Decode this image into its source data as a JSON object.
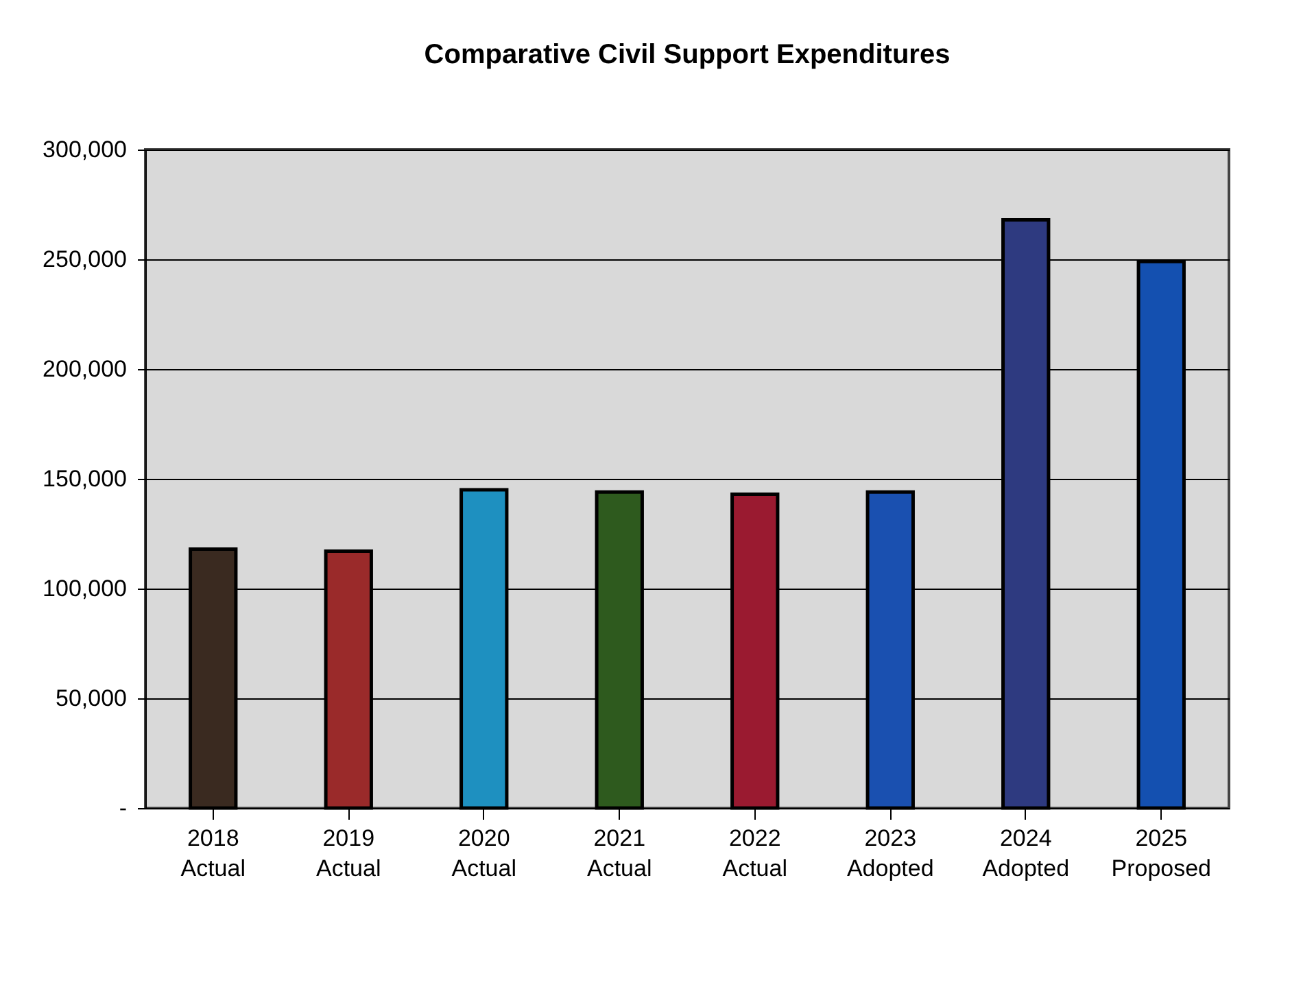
{
  "chart_data": {
    "type": "bar",
    "title": "Comparative Civil Support Expenditures",
    "categories": [
      "2018 Actual",
      "2019 Actual",
      "2020 Actual",
      "2021 Actual",
      "2022 Actual",
      "2023 Adopted",
      "2024 Adopted",
      "2025 Proposed"
    ],
    "values": [
      118000,
      117000,
      145000,
      144000,
      143000,
      144000,
      268000,
      249000
    ],
    "colors": [
      "#3a2a20",
      "#9a2a2a",
      "#1e90c0",
      "#2e5a1e",
      "#9a1a30",
      "#1a50b0",
      "#2e3a80",
      "#1450b0"
    ],
    "ylim": [
      0,
      300000
    ],
    "yticks": [
      {
        "value": 0,
        "label": "-"
      },
      {
        "value": 50000,
        "label": "50,000"
      },
      {
        "value": 100000,
        "label": "100,000"
      },
      {
        "value": 150000,
        "label": "150,000"
      },
      {
        "value": 200000,
        "label": "200,000"
      },
      {
        "value": 250000,
        "label": "250,000"
      },
      {
        "value": 300000,
        "label": "300,000"
      }
    ],
    "grid": "y"
  }
}
